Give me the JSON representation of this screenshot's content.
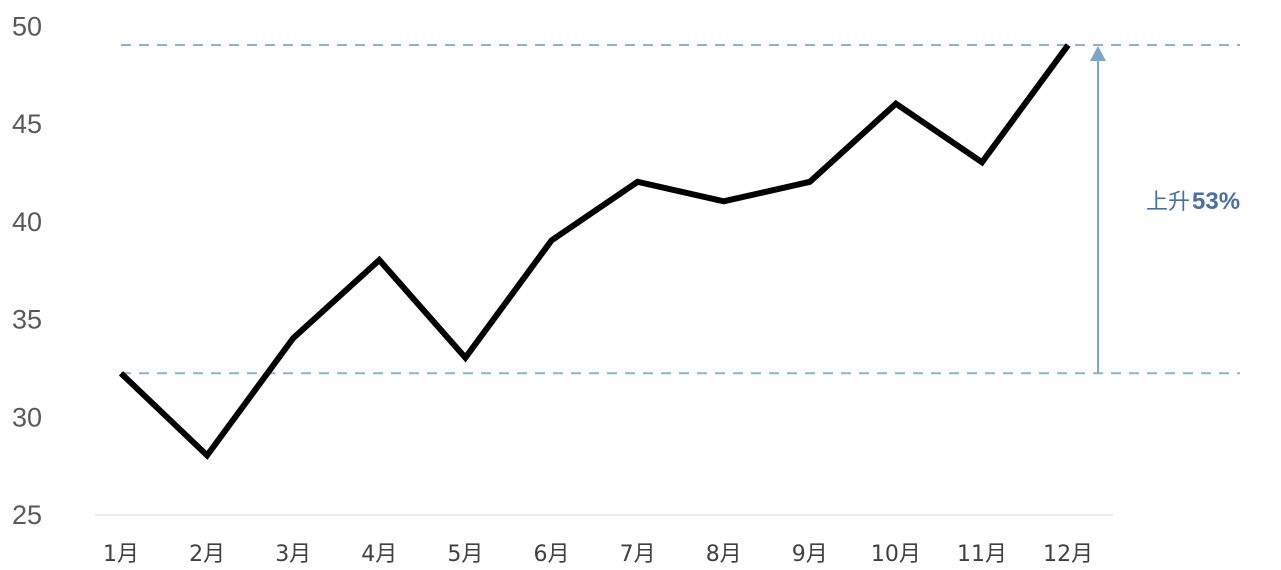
{
  "chart_data": {
    "type": "line",
    "categories": [
      "1月",
      "2月",
      "3月",
      "4月",
      "5月",
      "6月",
      "7月",
      "8月",
      "9月",
      "10月",
      "11月",
      "12月"
    ],
    "values": [
      32.2,
      28,
      34,
      38,
      33,
      39,
      42,
      41,
      42,
      46,
      43,
      49
    ],
    "title": "",
    "xlabel": "",
    "ylabel": "",
    "ylim": [
      25,
      50
    ],
    "yticks": [
      25,
      30,
      35,
      40,
      45,
      50
    ],
    "grid": false,
    "legend": "none",
    "line_color": "#000000",
    "reference_lines": [
      {
        "y": 32.2,
        "style": "dashed",
        "color": "#8db3cf"
      },
      {
        "y": 49,
        "style": "dashed",
        "color": "#8db3cf"
      }
    ],
    "annotation": {
      "label": "上升",
      "percent": "53%",
      "from": 32.2,
      "to": 49,
      "color": "#7aa6c8",
      "text_color": "#4a6fa5"
    }
  }
}
